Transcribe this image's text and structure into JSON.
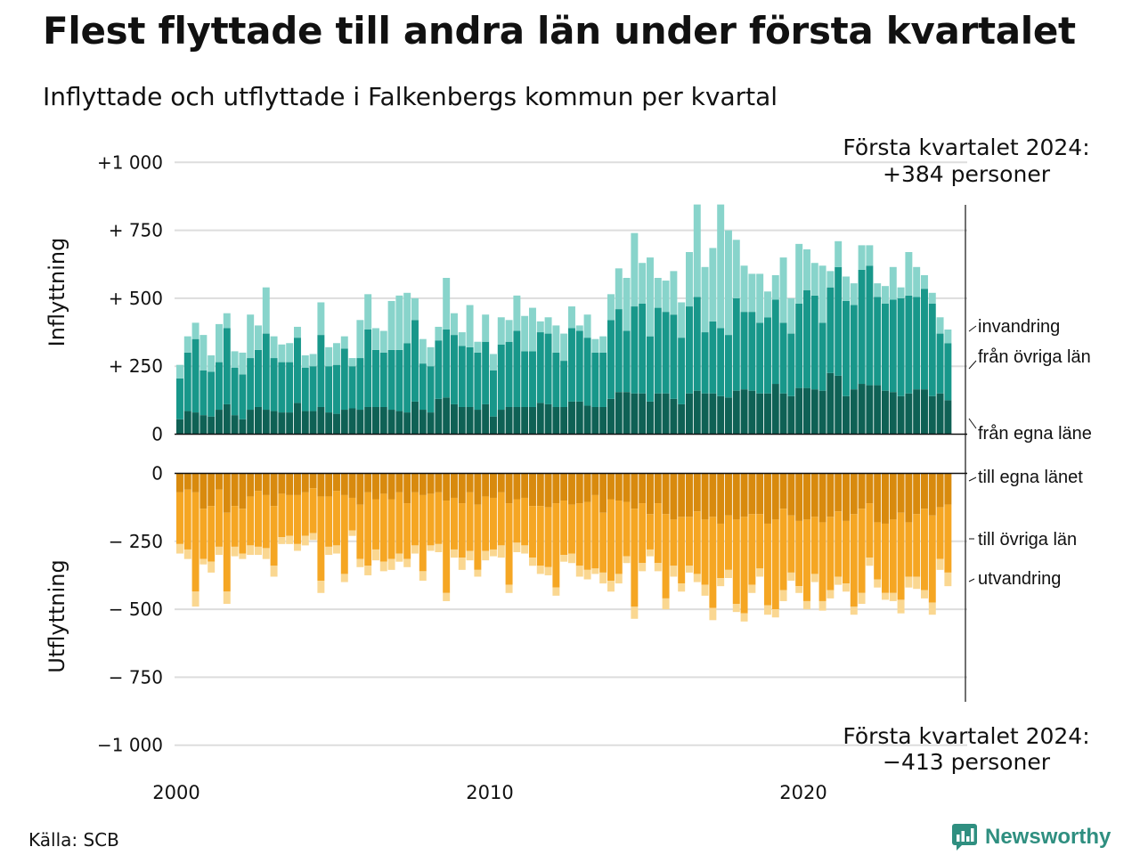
{
  "title": "Flest flyttade till andra län under första kvartalet",
  "subtitle": "Inflyttade och utflyttade i Falkenbergs kommun per kvartal",
  "source": "Källa: SCB",
  "brand": {
    "name": "Newsworthy",
    "icon": "newsworthy-logo-icon"
  },
  "colors": {
    "in_own": "#0f6155",
    "in_other": "#18978a",
    "in_imm": "#88d4cb",
    "out_own": "#d88a0e",
    "out_other": "#f5a623",
    "out_emi": "#fad791",
    "grid": "#dddddd"
  },
  "annotations": {
    "top_line1": "Första kvartalet 2024:",
    "top_line2": "+384 personer",
    "bottom_line1": "Första kvartalet 2024:",
    "bottom_line2": "−413 personer"
  },
  "chart_data": {
    "type": "bar",
    "stacked": true,
    "x_start": "2000 Q1",
    "x_end": "2024 Q1",
    "x_ticks": [
      "2000",
      "2010",
      "2020"
    ],
    "y_ticks_in": [
      "+1 000",
      "+  750",
      "+  500",
      "+  250",
      "0"
    ],
    "y_ticks_out": [
      "0",
      "−  250",
      "−  500",
      "−  750",
      "−1 000"
    ],
    "y_tick_values_in": [
      1000,
      750,
      500,
      250,
      0
    ],
    "y_tick_values_out": [
      0,
      -250,
      -500,
      -750,
      -1000
    ],
    "ylim": [
      -1000,
      1000
    ],
    "ylabel_in": "Inflyttning",
    "ylabel_out": "Utflyttning",
    "inflow_series": [
      {
        "name": "från egna läne",
        "values": [
          55,
          85,
          80,
          70,
          65,
          90,
          110,
          70,
          55,
          90,
          100,
          90,
          85,
          80,
          80,
          115,
          85,
          85,
          100,
          80,
          75,
          90,
          95,
          90,
          100,
          100,
          100,
          90,
          85,
          80,
          120,
          90,
          80,
          130,
          135,
          110,
          100,
          100,
          90,
          110,
          65,
          90,
          100,
          100,
          100,
          100,
          115,
          110,
          100,
          100,
          120,
          120,
          105,
          100,
          100,
          130,
          155,
          155,
          150,
          150,
          120,
          150,
          150,
          130,
          110,
          150,
          160,
          150,
          150,
          140,
          135,
          160,
          165,
          160,
          150,
          150,
          185,
          150,
          140,
          170,
          170,
          165,
          160,
          225,
          215,
          140,
          165,
          185,
          180,
          180,
          160,
          155,
          140,
          150,
          165,
          165,
          140,
          150,
          125
        ]
      },
      {
        "name": "från övriga län",
        "values": [
          150,
          215,
          270,
          165,
          165,
          175,
          280,
          175,
          165,
          190,
          210,
          280,
          195,
          185,
          185,
          240,
          160,
          165,
          265,
          170,
          180,
          225,
          155,
          190,
          285,
          210,
          200,
          220,
          225,
          255,
          300,
          170,
          170,
          215,
          250,
          255,
          225,
          220,
          210,
          230,
          170,
          240,
          240,
          280,
          205,
          205,
          260,
          260,
          200,
          170,
          270,
          260,
          250,
          200,
          200,
          290,
          305,
          225,
          320,
          330,
          240,
          315,
          300,
          310,
          245,
          320,
          345,
          225,
          265,
          250,
          230,
          340,
          285,
          290,
          260,
          280,
          310,
          260,
          230,
          310,
          360,
          345,
          250,
          315,
          400,
          350,
          310,
          420,
          440,
          325,
          320,
          340,
          360,
          360,
          340,
          370,
          340,
          220,
          210
        ]
      },
      {
        "name": "invandring",
        "values": [
          50,
          60,
          60,
          130,
          60,
          140,
          55,
          60,
          80,
          160,
          90,
          170,
          80,
          65,
          70,
          40,
          45,
          45,
          120,
          70,
          80,
          45,
          30,
          140,
          130,
          80,
          80,
          180,
          200,
          185,
          80,
          90,
          70,
          50,
          190,
          80,
          50,
          155,
          40,
          100,
          60,
          100,
          80,
          130,
          130,
          160,
          40,
          60,
          100,
          100,
          80,
          20,
          85,
          50,
          60,
          95,
          150,
          195,
          270,
          150,
          290,
          110,
          115,
          160,
          130,
          200,
          340,
          240,
          270,
          455,
          385,
          215,
          170,
          140,
          180,
          95,
          90,
          240,
          130,
          220,
          150,
          120,
          210,
          60,
          95,
          90,
          80,
          90,
          75,
          50,
          65,
          120,
          40,
          160,
          110,
          50,
          40,
          60,
          50
        ]
      }
    ],
    "outflow_series": [
      {
        "name": "till egna länet",
        "values": [
          70,
          60,
          70,
          130,
          120,
          60,
          145,
          120,
          130,
          85,
          65,
          80,
          120,
          75,
          80,
          80,
          70,
          55,
          85,
          85,
          65,
          80,
          90,
          115,
          70,
          95,
          75,
          95,
          70,
          110,
          70,
          80,
          75,
          70,
          100,
          90,
          110,
          70,
          115,
          85,
          90,
          70,
          110,
          95,
          90,
          120,
          120,
          125,
          110,
          100,
          115,
          110,
          105,
          80,
          145,
          95,
          100,
          105,
          130,
          110,
          150,
          110,
          150,
          170,
          160,
          160,
          140,
          170,
          160,
          185,
          155,
          170,
          160,
          150,
          150,
          185,
          170,
          130,
          155,
          175,
          170,
          160,
          180,
          160,
          140,
          175,
          150,
          130,
          110,
          180,
          185,
          170,
          145,
          180,
          150,
          130,
          155,
          125,
          115
        ]
      },
      {
        "name": "till övriga län",
        "values": [
          190,
          220,
          365,
          185,
          205,
          210,
          290,
          150,
          165,
          180,
          205,
          195,
          220,
          160,
          150,
          180,
          160,
          165,
          310,
          185,
          200,
          290,
          120,
          200,
          270,
          185,
          250,
          220,
          225,
          205,
          195,
          280,
          190,
          190,
          340,
          190,
          200,
          215,
          240,
          200,
          190,
          195,
          300,
          160,
          175,
          190,
          220,
          220,
          310,
          200,
          180,
          230,
          250,
          270,
          220,
          300,
          270,
          200,
          360,
          220,
          130,
          220,
          310,
          170,
          245,
          180,
          230,
          240,
          335,
          200,
          200,
          310,
          355,
          260,
          200,
          300,
          330,
          300,
          210,
          240,
          300,
          210,
          290,
          270,
          240,
          230,
          340,
          310,
          200,
          210,
          255,
          270,
          320,
          200,
          230,
          300,
          320,
          190,
          250
        ]
      },
      {
        "name": "utvandring",
        "values": [
          35,
          35,
          55,
          20,
          40,
          30,
          45,
          35,
          20,
          35,
          30,
          40,
          40,
          25,
          30,
          25,
          35,
          25,
          45,
          30,
          30,
          30,
          20,
          30,
          35,
          40,
          35,
          40,
          30,
          30,
          30,
          35,
          20,
          30,
          30,
          30,
          45,
          35,
          25,
          35,
          25,
          45,
          30,
          35,
          30,
          30,
          30,
          30,
          30,
          25,
          35,
          40,
          35,
          20,
          40,
          40,
          35,
          25,
          45,
          30,
          25,
          30,
          40,
          40,
          30,
          25,
          30,
          40,
          45,
          30,
          30,
          30,
          30,
          30,
          30,
          35,
          30,
          40,
          30,
          25,
          30,
          30,
          35,
          30,
          30,
          30,
          30,
          40,
          30,
          30,
          25,
          30,
          50,
          40,
          45,
          30,
          45,
          40,
          50
        ]
      }
    ]
  }
}
